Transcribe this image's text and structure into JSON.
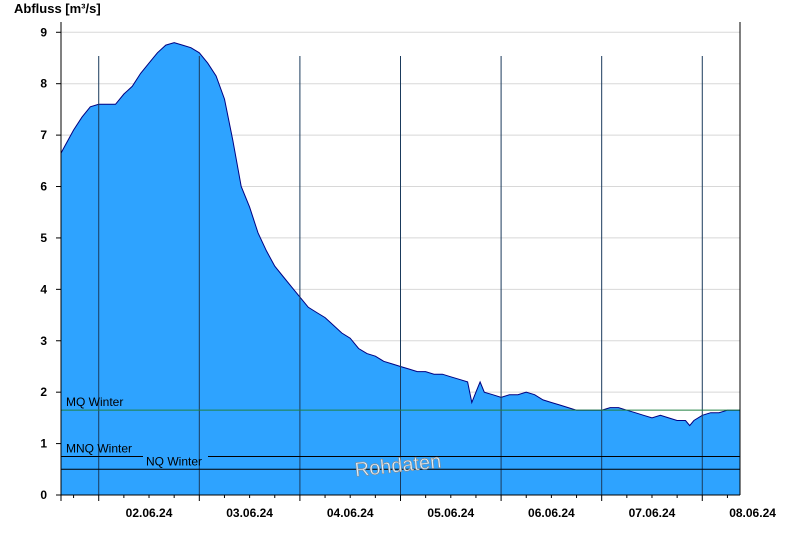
{
  "chart_data": {
    "type": "area",
    "title": "",
    "ylabel": "Abfluss [m³/s]",
    "xlabel": "",
    "ylim": [
      0,
      9.2
    ],
    "yticks": [
      0,
      1,
      2,
      3,
      4,
      5,
      6,
      7,
      8,
      9
    ],
    "x_range": [
      "01.06.24 15:00",
      "08.06.24 09:00"
    ],
    "xtick_labels": [
      "02.06.24",
      "03.06.24",
      "04.06.24",
      "05.06.24",
      "06.06.24",
      "07.06.24",
      "08.06.24"
    ],
    "grid": true,
    "colors": {
      "fill": "#2ea3ff",
      "line": "#000080",
      "mq_line": "#208040",
      "ref_line": "#000000",
      "grid": "#d8d8d8",
      "day_line": "#1a3a5c"
    },
    "series": [
      {
        "points": [
          [
            "01.06.24 15:00",
            6.65
          ],
          [
            "01.06.24 16:00",
            6.8
          ],
          [
            "01.06.24 18:00",
            7.1
          ],
          [
            "01.06.24 20:00",
            7.35
          ],
          [
            "01.06.24 22:00",
            7.55
          ],
          [
            "02.06.24 00:00",
            7.6
          ],
          [
            "02.06.24 02:00",
            7.6
          ],
          [
            "02.06.24 04:00",
            7.6
          ],
          [
            "02.06.24 06:00",
            7.8
          ],
          [
            "02.06.24 08:00",
            7.95
          ],
          [
            "02.06.24 10:00",
            8.2
          ],
          [
            "02.06.24 12:00",
            8.4
          ],
          [
            "02.06.24 14:00",
            8.6
          ],
          [
            "02.06.24 16:00",
            8.75
          ],
          [
            "02.06.24 18:00",
            8.8
          ],
          [
            "02.06.24 20:00",
            8.75
          ],
          [
            "02.06.24 22:00",
            8.7
          ],
          [
            "03.06.24 00:00",
            8.6
          ],
          [
            "03.06.24 02:00",
            8.4
          ],
          [
            "03.06.24 04:00",
            8.15
          ],
          [
            "03.06.24 06:00",
            7.7
          ],
          [
            "03.06.24 08:00",
            6.9
          ],
          [
            "03.06.24 10:00",
            6.0
          ],
          [
            "03.06.24 12:00",
            5.6
          ],
          [
            "03.06.24 14:00",
            5.1
          ],
          [
            "03.06.24 16:00",
            4.75
          ],
          [
            "03.06.24 18:00",
            4.45
          ],
          [
            "03.06.24 20:00",
            4.25
          ],
          [
            "03.06.24 22:00",
            4.05
          ],
          [
            "04.06.24 00:00",
            3.85
          ],
          [
            "04.06.24 02:00",
            3.65
          ],
          [
            "04.06.24 04:00",
            3.55
          ],
          [
            "04.06.24 06:00",
            3.45
          ],
          [
            "04.06.24 08:00",
            3.3
          ],
          [
            "04.06.24 10:00",
            3.15
          ],
          [
            "04.06.24 12:00",
            3.05
          ],
          [
            "04.06.24 14:00",
            2.85
          ],
          [
            "04.06.24 16:00",
            2.75
          ],
          [
            "04.06.24 18:00",
            2.7
          ],
          [
            "04.06.24 20:00",
            2.6
          ],
          [
            "04.06.24 22:00",
            2.55
          ],
          [
            "05.06.24 00:00",
            2.5
          ],
          [
            "05.06.24 02:00",
            2.45
          ],
          [
            "05.06.24 04:00",
            2.4
          ],
          [
            "05.06.24 06:00",
            2.4
          ],
          [
            "05.06.24 08:00",
            2.35
          ],
          [
            "05.06.24 10:00",
            2.35
          ],
          [
            "05.06.24 12:00",
            2.3
          ],
          [
            "05.06.24 14:00",
            2.25
          ],
          [
            "05.06.24 16:00",
            2.2
          ],
          [
            "05.06.24 17:00",
            1.8
          ],
          [
            "05.06.24 18:00",
            2.0
          ],
          [
            "05.06.24 19:00",
            2.2
          ],
          [
            "05.06.24 20:00",
            2.0
          ],
          [
            "05.06.24 22:00",
            1.95
          ],
          [
            "06.06.24 00:00",
            1.9
          ],
          [
            "06.06.24 02:00",
            1.95
          ],
          [
            "06.06.24 04:00",
            1.95
          ],
          [
            "06.06.24 06:00",
            2.0
          ],
          [
            "06.06.24 08:00",
            1.95
          ],
          [
            "06.06.24 10:00",
            1.85
          ],
          [
            "06.06.24 12:00",
            1.8
          ],
          [
            "06.06.24 14:00",
            1.75
          ],
          [
            "06.06.24 16:00",
            1.7
          ],
          [
            "06.06.24 18:00",
            1.65
          ],
          [
            "06.06.24 20:00",
            1.65
          ],
          [
            "06.06.24 22:00",
            1.65
          ],
          [
            "07.06.24 00:00",
            1.65
          ],
          [
            "07.06.24 02:00",
            1.7
          ],
          [
            "07.06.24 04:00",
            1.7
          ],
          [
            "07.06.24 06:00",
            1.65
          ],
          [
            "07.06.24 08:00",
            1.6
          ],
          [
            "07.06.24 10:00",
            1.55
          ],
          [
            "07.06.24 12:00",
            1.5
          ],
          [
            "07.06.24 14:00",
            1.55
          ],
          [
            "07.06.24 16:00",
            1.5
          ],
          [
            "07.06.24 18:00",
            1.45
          ],
          [
            "07.06.24 20:00",
            1.45
          ],
          [
            "07.06.24 21:00",
            1.35
          ],
          [
            "07.06.24 22:00",
            1.45
          ],
          [
            "08.06.24 00:00",
            1.55
          ],
          [
            "08.06.24 02:00",
            1.6
          ],
          [
            "08.06.24 04:00",
            1.6
          ],
          [
            "08.06.24 06:00",
            1.65
          ],
          [
            "08.06.24 08:00",
            1.65
          ],
          [
            "08.06.24 09:00",
            1.65
          ]
        ]
      }
    ],
    "reference_lines": [
      {
        "label": "MQ Winter",
        "value": 1.65,
        "color": "#208040"
      },
      {
        "label": "MNQ Winter",
        "value": 0.75,
        "color": "#000000"
      },
      {
        "label": "NQ Winter",
        "value": 0.5,
        "color": "#000000"
      }
    ],
    "watermark": "Rohdaten"
  }
}
